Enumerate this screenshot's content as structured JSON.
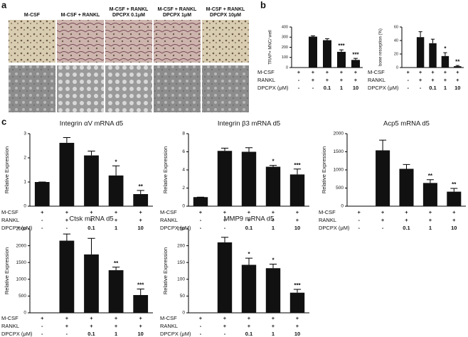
{
  "figure": {
    "panel_labels": [
      "a",
      "b",
      "c"
    ],
    "image_labels": [
      [
        "M-CSF"
      ],
      [
        "M-CSF + RANKL"
      ],
      [
        "M-CSF + RANKL",
        "DPCPX 0.1μM"
      ],
      [
        "M-CSF + RANKL",
        "DPCPX 1μM"
      ],
      [
        "M-CSF + RANKL",
        "DPCPX 10μM"
      ]
    ]
  },
  "chart_data": [
    {
      "type": "bar",
      "y_label": "TRAP+ MNC/ well",
      "ylim": [
        0,
        400
      ],
      "yticks": [
        0,
        100,
        200,
        300,
        400
      ],
      "color": "#111111",
      "values": [
        0,
        305,
        270,
        155,
        75
      ],
      "errors": [
        0,
        8,
        15,
        20,
        15
      ],
      "annotations": [
        null,
        null,
        null,
        "***",
        "***"
      ],
      "conditions": [
        {
          "name": "M-CSF",
          "values": [
            "+",
            "+",
            "+",
            "+",
            "+"
          ]
        },
        {
          "name": "RANKL",
          "values": [
            "-",
            "+",
            "+",
            "+",
            "+"
          ]
        },
        {
          "name": "DPCPX (μM)",
          "values": [
            "-",
            "-",
            "0.1",
            "1",
            "10"
          ]
        }
      ]
    },
    {
      "type": "bar",
      "y_label": "bone resorption (%)",
      "ylim": [
        0,
        60
      ],
      "yticks": [
        0,
        20,
        40,
        60
      ],
      "color": "#111111",
      "values": [
        0,
        45,
        36,
        17,
        2
      ],
      "errors": [
        0,
        8,
        6,
        5,
        1
      ],
      "annotations": [
        null,
        null,
        null,
        "*",
        "**"
      ],
      "conditions": [
        {
          "name": "M-CSF",
          "values": [
            "+",
            "+",
            "+",
            "+",
            "+"
          ]
        },
        {
          "name": "RANKL",
          "values": [
            "-",
            "+",
            "+",
            "+",
            "+"
          ]
        },
        {
          "name": "DPCPX (μM)",
          "values": [
            "-",
            "-",
            "0.1",
            "1",
            "10"
          ]
        }
      ]
    },
    {
      "type": "bar",
      "title": "Integrin αV mRNA d5",
      "y_label": "Relative Expression",
      "ylim": [
        0,
        3
      ],
      "yticks": [
        0,
        1,
        2,
        3
      ],
      "color": "#111111",
      "values": [
        1,
        2.62,
        2.1,
        1.27,
        0.5
      ],
      "errors": [
        0,
        0.22,
        0.18,
        0.4,
        0.15
      ],
      "annotations": [
        null,
        null,
        null,
        "*",
        "**"
      ],
      "conditions": [
        {
          "name": "M-CSF",
          "values": [
            "+",
            "+",
            "+",
            "+",
            "+"
          ]
        },
        {
          "name": "RANKL",
          "values": [
            "-",
            "+",
            "+",
            "+",
            "+"
          ]
        },
        {
          "name": "DPCPX (μM)",
          "values": [
            "-",
            "-",
            "0.1",
            "1",
            "10"
          ]
        }
      ]
    },
    {
      "type": "bar",
      "title": "Integrin β3 mRNA d5",
      "y_label": "Relative Expression",
      "ylim": [
        0,
        8
      ],
      "yticks": [
        0,
        2,
        4,
        6,
        8
      ],
      "color": "#111111",
      "values": [
        1,
        6.1,
        6.0,
        4.35,
        3.5
      ],
      "errors": [
        0,
        0.3,
        0.45,
        0.15,
        0.6
      ],
      "annotations": [
        null,
        null,
        null,
        "*",
        "***"
      ],
      "conditions": [
        {
          "name": "M-CSF",
          "values": [
            "+",
            "+",
            "+",
            "+",
            "+"
          ]
        },
        {
          "name": "RANKL",
          "values": [
            "-",
            "+",
            "+",
            "+",
            "+"
          ]
        },
        {
          "name": "DPCPX (μM)",
          "values": [
            "-",
            "-",
            "0.1",
            "1",
            "10"
          ]
        }
      ]
    },
    {
      "type": "bar",
      "title": "Acp5 mRNA d5",
      "y_label": "Relative Expression",
      "ylim": [
        0,
        2000
      ],
      "yticks": [
        0,
        500,
        1000,
        1500,
        2000
      ],
      "color": "#111111",
      "values": [
        0,
        1540,
        1030,
        640,
        400
      ],
      "errors": [
        0,
        280,
        120,
        90,
        90
      ],
      "annotations": [
        null,
        null,
        null,
        "**",
        "**"
      ],
      "conditions": [
        {
          "name": "M-CSF",
          "values": [
            "+",
            "+",
            "+",
            "+",
            "+"
          ]
        },
        {
          "name": "RANKL",
          "values": [
            "-",
            "+",
            "+",
            "+",
            "+"
          ]
        },
        {
          "name": "DPCPX (μM)",
          "values": [
            "-",
            "-",
            "0.1",
            "1",
            "10"
          ]
        }
      ]
    },
    {
      "type": "bar",
      "title": "Ctsk mRNA d5",
      "y_label": "Relative Expression",
      "ylim": [
        0,
        2500
      ],
      "yticks": [
        0,
        500,
        1000,
        1500,
        2000,
        2500
      ],
      "color": "#111111",
      "values": [
        0,
        2150,
        1740,
        1270,
        530
      ],
      "errors": [
        0,
        200,
        480,
        90,
        180
      ],
      "annotations": [
        null,
        null,
        null,
        "**",
        "***"
      ],
      "conditions": [
        {
          "name": "M-CSF",
          "values": [
            "+",
            "+",
            "+",
            "+",
            "+"
          ]
        },
        {
          "name": "RANKL",
          "values": [
            "-",
            "+",
            "+",
            "+",
            "+"
          ]
        },
        {
          "name": "DPCPX (μM)",
          "values": [
            "-",
            "-",
            "0.1",
            "1",
            "10"
          ]
        }
      ]
    },
    {
      "type": "bar",
      "title": "MMP9 mRNA d5",
      "y_label": "Relative Expression",
      "ylim": [
        0,
        250
      ],
      "yticks": [
        0,
        50,
        100,
        150,
        200,
        250
      ],
      "color": "#111111",
      "values": [
        0,
        210,
        143,
        133,
        60
      ],
      "errors": [
        0,
        15,
        20,
        12,
        10
      ],
      "annotations": [
        null,
        null,
        "*",
        "*",
        "***"
      ],
      "conditions": [
        {
          "name": "M-CSF",
          "values": [
            "+",
            "+",
            "+",
            "+",
            "+"
          ]
        },
        {
          "name": "RANKL",
          "values": [
            "-",
            "+",
            "+",
            "+",
            "+"
          ]
        },
        {
          "name": "DPCPX (μM)",
          "values": [
            "-",
            "-",
            "0.1",
            "1",
            "10"
          ]
        }
      ]
    }
  ]
}
